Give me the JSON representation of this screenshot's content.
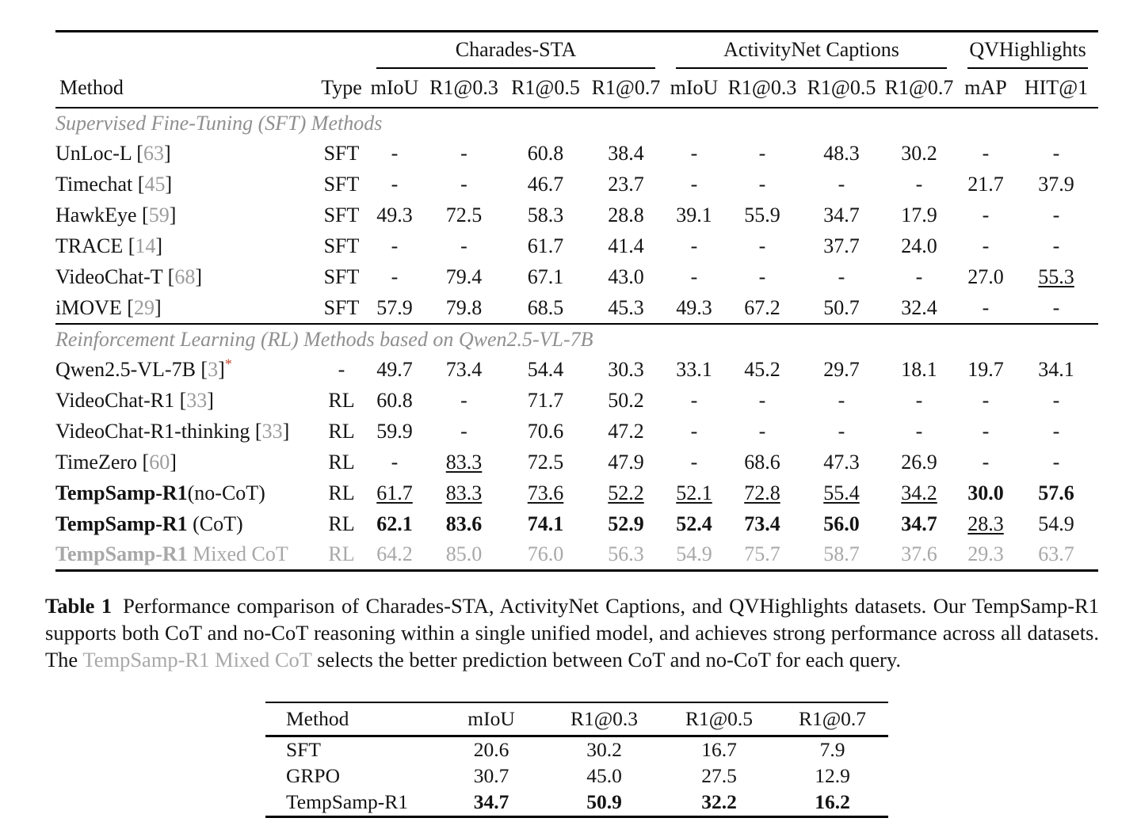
{
  "colors": {
    "text": "#141414",
    "section_header_gray": "#8f8f8f",
    "citation_gray": "#9b9b9b",
    "muted_row_gray": "#a8a8a8",
    "asterisk_red": "#c0452c",
    "rule_black": "#000000"
  },
  "table1": {
    "groups": [
      {
        "label": "Charades-STA",
        "span": 4
      },
      {
        "label": "ActivityNet Captions",
        "span": 4
      },
      {
        "label": "QVHighlights",
        "span": 2
      }
    ],
    "columns": [
      "Method",
      "Type",
      "mIoU",
      "R1@0.3",
      "R1@0.5",
      "R1@0.7",
      "mIoU",
      "R1@0.3",
      "R1@0.5",
      "R1@0.7",
      "mAP",
      "HIT@1"
    ],
    "sections": [
      {
        "header": "Supervised Fine-Tuning (SFT) Methods",
        "rows": [
          {
            "method": "UnLoc-L",
            "cite": "63",
            "type": "SFT",
            "cells": [
              "-",
              "-",
              "60.8",
              "38.4",
              "-",
              "-",
              "48.3",
              "30.2",
              "-",
              "-"
            ]
          },
          {
            "method": "Timechat",
            "cite": "45",
            "type": "SFT",
            "cells": [
              "-",
              "-",
              "46.7",
              "23.7",
              "-",
              "-",
              "-",
              "-",
              "21.7",
              "37.9"
            ]
          },
          {
            "method": "HawkEye",
            "cite": "59",
            "type": "SFT",
            "cells": [
              "49.3",
              "72.5",
              "58.3",
              "28.8",
              "39.1",
              "55.9",
              "34.7",
              "17.9",
              "-",
              "-"
            ]
          },
          {
            "method": "TRACE",
            "cite": "14",
            "type": "SFT",
            "cells": [
              "-",
              "-",
              "61.7",
              "41.4",
              "-",
              "-",
              "37.7",
              "24.0",
              "-",
              "-"
            ]
          },
          {
            "method": "VideoChat-T",
            "cite": "68",
            "type": "SFT",
            "cells": [
              "-",
              "79.4",
              "67.1",
              "43.0",
              "-",
              "-",
              "-",
              "-",
              "27.0",
              {
                "v": "55.3",
                "s": "u"
              }
            ]
          },
          {
            "method": "iMOVE",
            "cite": "29",
            "type": "SFT",
            "cells": [
              "57.9",
              "79.8",
              "68.5",
              "45.3",
              "49.3",
              "67.2",
              "50.7",
              "32.4",
              "-",
              "-"
            ]
          }
        ]
      },
      {
        "header": "Reinforcement Learning (RL) Methods based on Qwen2.5-VL-7B",
        "rows": [
          {
            "method": "Qwen2.5-VL-7B",
            "cite": "3",
            "asterisk": "*",
            "type": "-",
            "cells": [
              "49.7",
              "73.4",
              "54.4",
              "30.3",
              "33.1",
              "45.2",
              "29.7",
              "18.1",
              "19.7",
              "34.1"
            ]
          },
          {
            "method": "VideoChat-R1",
            "cite": "33",
            "type": "RL",
            "cells": [
              "60.8",
              "-",
              "71.7",
              "50.2",
              "-",
              "-",
              "-",
              "-",
              "-",
              "-"
            ]
          },
          {
            "method": "VideoChat-R1-thinking",
            "cite": "33",
            "type": "RL",
            "cells": [
              "59.9",
              "-",
              "70.6",
              "47.2",
              "-",
              "-",
              "-",
              "-",
              "-",
              "-"
            ]
          },
          {
            "method": "TimeZero",
            "cite": "60",
            "type": "RL",
            "cells": [
              "-",
              {
                "v": "83.3",
                "s": "u"
              },
              "72.5",
              "47.9",
              "-",
              "68.6",
              "47.3",
              "26.9",
              "-",
              "-"
            ]
          },
          {
            "method_bold": "TempSamp-R1",
            "method": "(no-CoT)",
            "type": "RL",
            "cells": [
              {
                "v": "61.7",
                "s": "u"
              },
              {
                "v": "83.3",
                "s": "u"
              },
              {
                "v": "73.6",
                "s": "u"
              },
              {
                "v": "52.2",
                "s": "u"
              },
              {
                "v": "52.1",
                "s": "u"
              },
              {
                "v": "72.8",
                "s": "u"
              },
              {
                "v": "55.4",
                "s": "u"
              },
              {
                "v": "34.2",
                "s": "u"
              },
              {
                "v": "30.0",
                "s": "b"
              },
              {
                "v": "57.6",
                "s": "b"
              }
            ]
          },
          {
            "method_bold": "TempSamp-R1",
            "method": " (CoT)",
            "type": "RL",
            "cells": [
              {
                "v": "62.1",
                "s": "b"
              },
              {
                "v": "83.6",
                "s": "b"
              },
              {
                "v": "74.1",
                "s": "b"
              },
              {
                "v": "52.9",
                "s": "b"
              },
              {
                "v": "52.4",
                "s": "b"
              },
              {
                "v": "73.4",
                "s": "b"
              },
              {
                "v": "56.0",
                "s": "b"
              },
              {
                "v": "34.7",
                "s": "b"
              },
              {
                "v": "28.3",
                "s": "u"
              },
              "54.9"
            ]
          },
          {
            "method_bold": "TempSamp-R1",
            "method": " Mixed CoT",
            "type": "RL",
            "gray": true,
            "cells": [
              "64.2",
              "85.0",
              "76.0",
              "56.3",
              "54.9",
              "75.7",
              "58.7",
              "37.6",
              "29.3",
              "63.7"
            ]
          }
        ]
      }
    ]
  },
  "caption": {
    "label": "Table 1",
    "text_before": "Performance comparison of Charades-STA, ActivityNet Captions, and QVHighlights datasets. Our TempSamp-R1 supports both CoT and no-CoT reasoning within a single unified model, and achieves strong performance across all datasets. The ",
    "gray_phrase": "TempSamp-R1 Mixed CoT",
    "text_after": " selects the better prediction between CoT and no-CoT for each query."
  },
  "table2": {
    "columns": [
      "Method",
      "mIoU",
      "R1@0.3",
      "R1@0.5",
      "R1@0.7"
    ],
    "rows": [
      {
        "method": "SFT",
        "cells": [
          "20.6",
          "30.2",
          "16.7",
          "7.9"
        ]
      },
      {
        "method": "GRPO",
        "cells": [
          "30.7",
          "45.0",
          "27.5",
          "12.9"
        ]
      },
      {
        "method": "TempSamp-R1",
        "cells": [
          {
            "v": "34.7",
            "s": "b"
          },
          {
            "v": "50.9",
            "s": "b"
          },
          {
            "v": "32.2",
            "s": "b"
          },
          {
            "v": "16.2",
            "s": "b"
          }
        ]
      }
    ]
  }
}
